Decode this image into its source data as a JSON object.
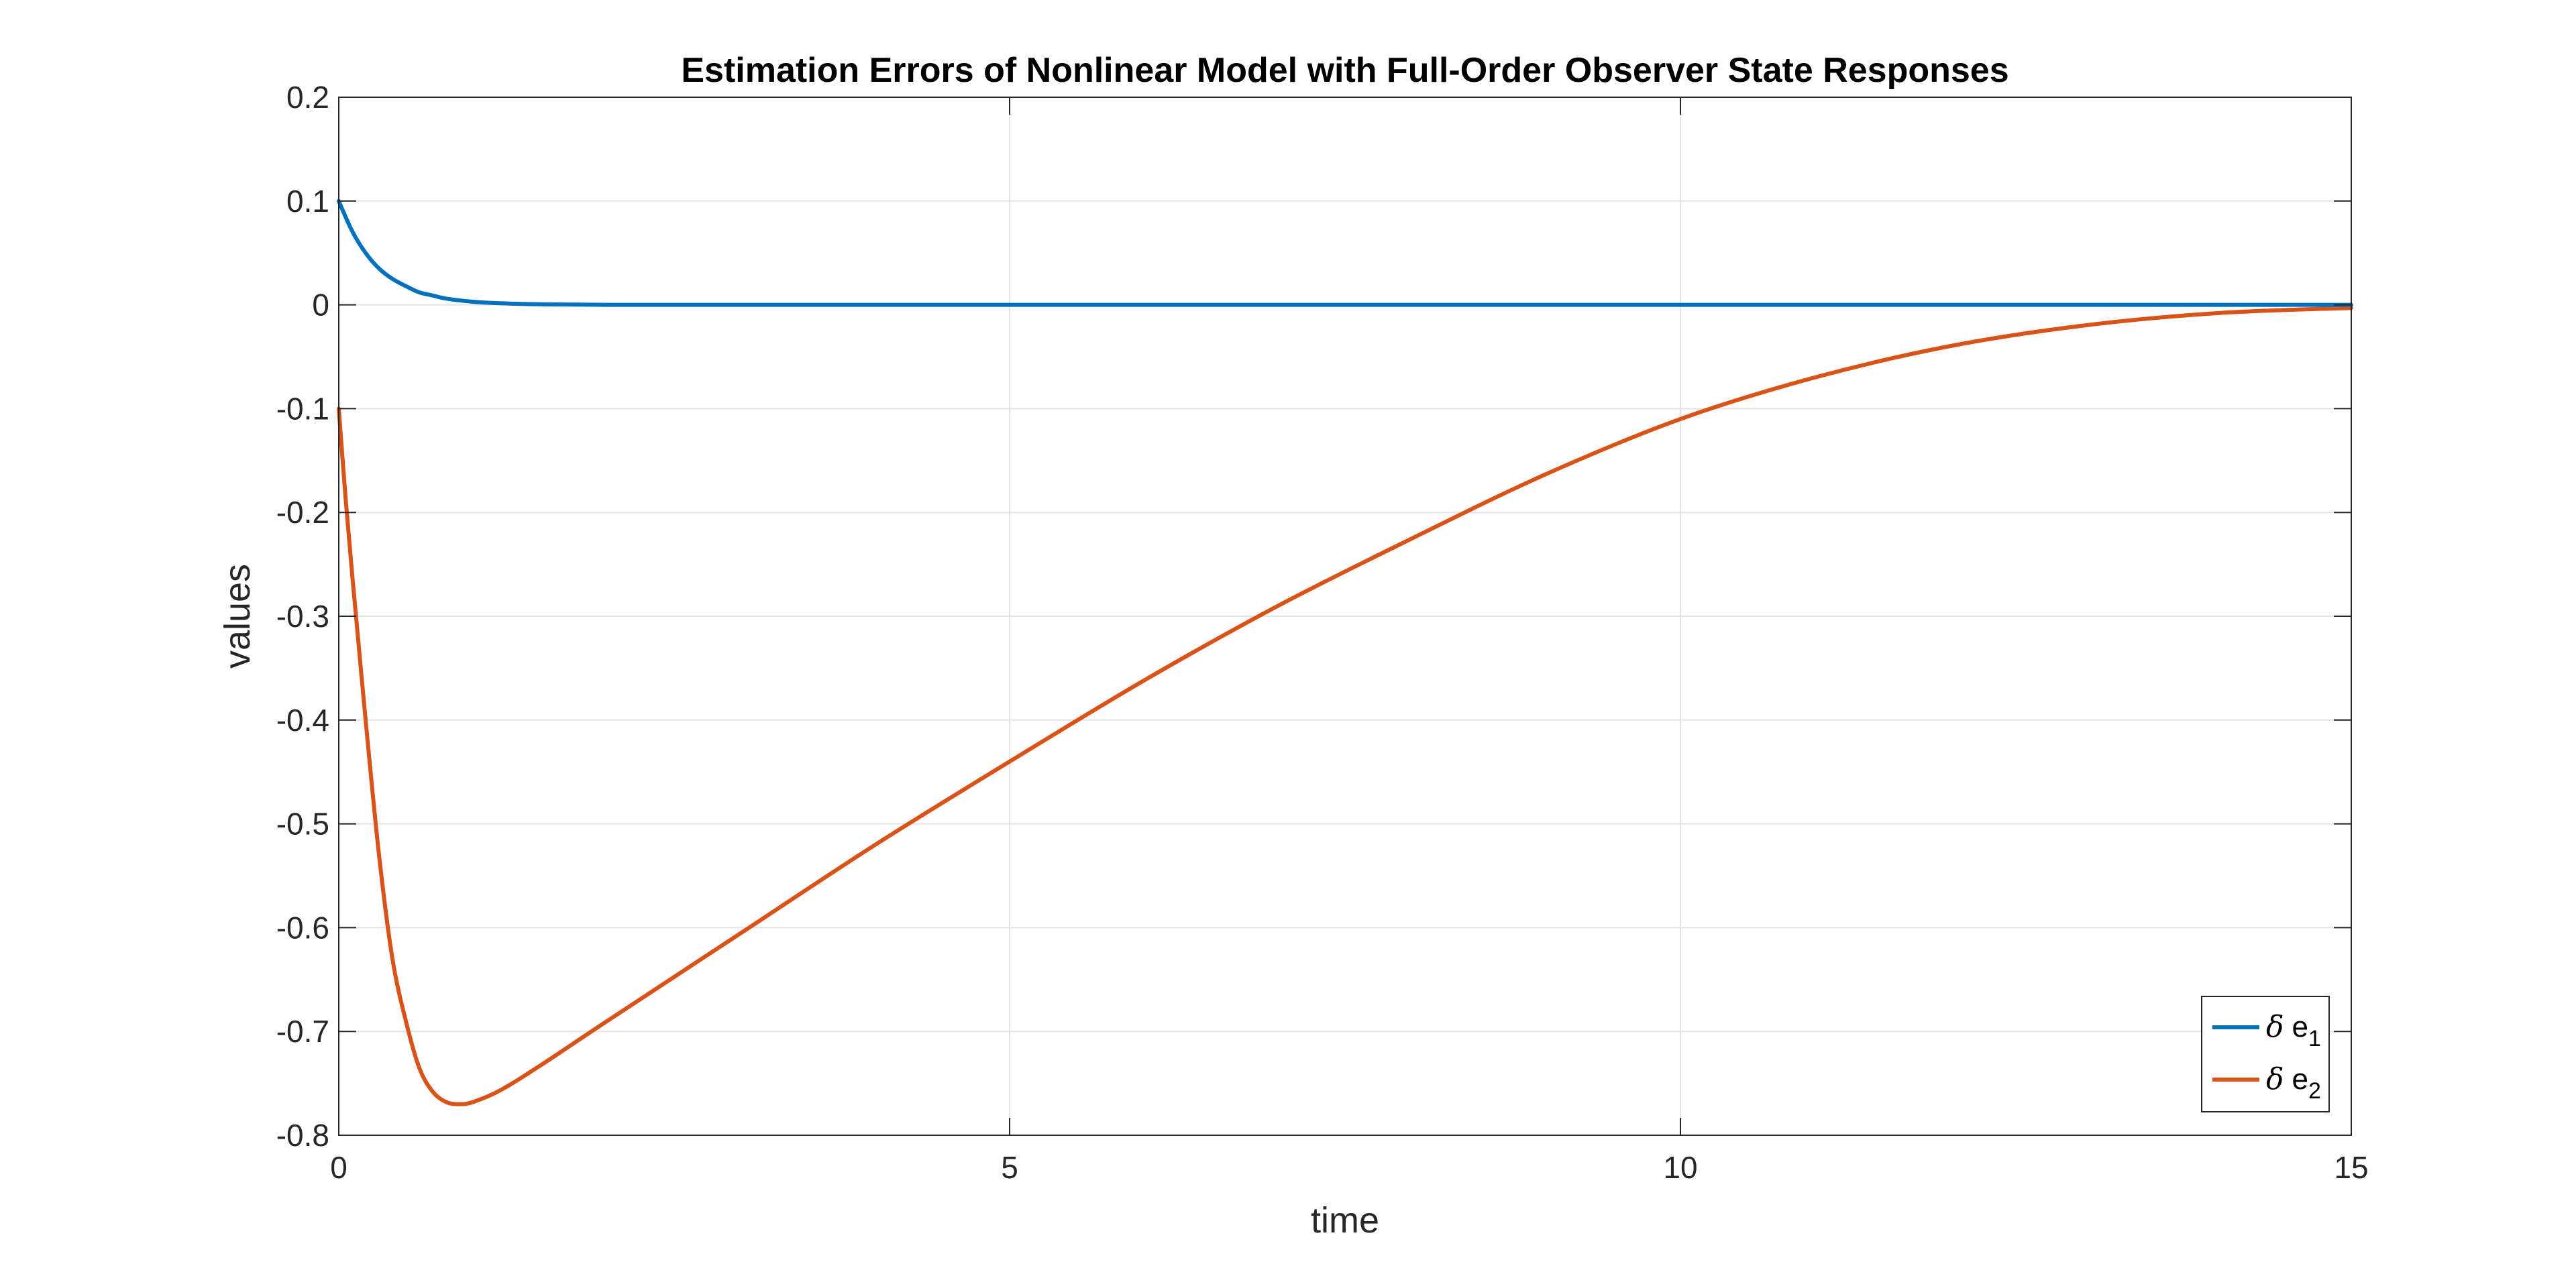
{
  "chart_data": {
    "type": "line",
    "title": "Estimation Errors of Nonlinear Model with Full-Order Observer State Responses",
    "xlabel": "time",
    "ylabel": "values",
    "xlim": [
      0,
      15
    ],
    "ylim": [
      -0.8,
      0.2
    ],
    "xticks": [
      0,
      5,
      10,
      15
    ],
    "xtick_labels": [
      "0",
      "5",
      "10",
      "15"
    ],
    "yticks": [
      0.2,
      0.1,
      0,
      -0.1,
      -0.2,
      -0.3,
      -0.4,
      -0.5,
      -0.6,
      -0.7,
      -0.8
    ],
    "ytick_labels": [
      "0.2",
      "0.1",
      "0",
      "-0.1",
      "-0.2",
      "-0.3",
      "-0.4",
      "-0.5",
      "-0.6",
      "-0.7",
      "-0.8"
    ],
    "grid": true,
    "legend_position": "bottom-right",
    "series": [
      {
        "name": "δ e1",
        "legend_symbol": "δ",
        "legend_base": "e",
        "legend_subscript": "1",
        "color": "#0072BD",
        "x": [
          0,
          0.1,
          0.2,
          0.3,
          0.4,
          0.5,
          0.6,
          0.7,
          0.8,
          1.0,
          1.2,
          1.5,
          2.0,
          3,
          5,
          10,
          15
        ],
        "y": [
          0.1,
          0.071,
          0.05,
          0.035,
          0.025,
          0.018,
          0.012,
          0.009,
          0.006,
          0.003,
          0.0015,
          0.0005,
          0.0,
          0,
          0,
          0,
          0
        ]
      },
      {
        "name": "δ e2",
        "legend_symbol": "δ",
        "legend_base": "e",
        "legend_subscript": "2",
        "color": "#D95319",
        "x": [
          0,
          0.05,
          0.1,
          0.15,
          0.2,
          0.3,
          0.4,
          0.5,
          0.6,
          0.7,
          0.8,
          0.9,
          1.0,
          1.2,
          1.5,
          2,
          3,
          4,
          5,
          6,
          7,
          8,
          9,
          10,
          11,
          12,
          13,
          14,
          15
        ],
        "y": [
          -0.1,
          -0.185,
          -0.26,
          -0.33,
          -0.4,
          -0.53,
          -0.63,
          -0.69,
          -0.735,
          -0.758,
          -0.768,
          -0.77,
          -0.768,
          -0.757,
          -0.733,
          -0.69,
          -0.605,
          -0.52,
          -0.44,
          -0.362,
          -0.29,
          -0.225,
          -0.163,
          -0.11,
          -0.07,
          -0.04,
          -0.02,
          -0.008,
          -0.003
        ]
      }
    ]
  }
}
